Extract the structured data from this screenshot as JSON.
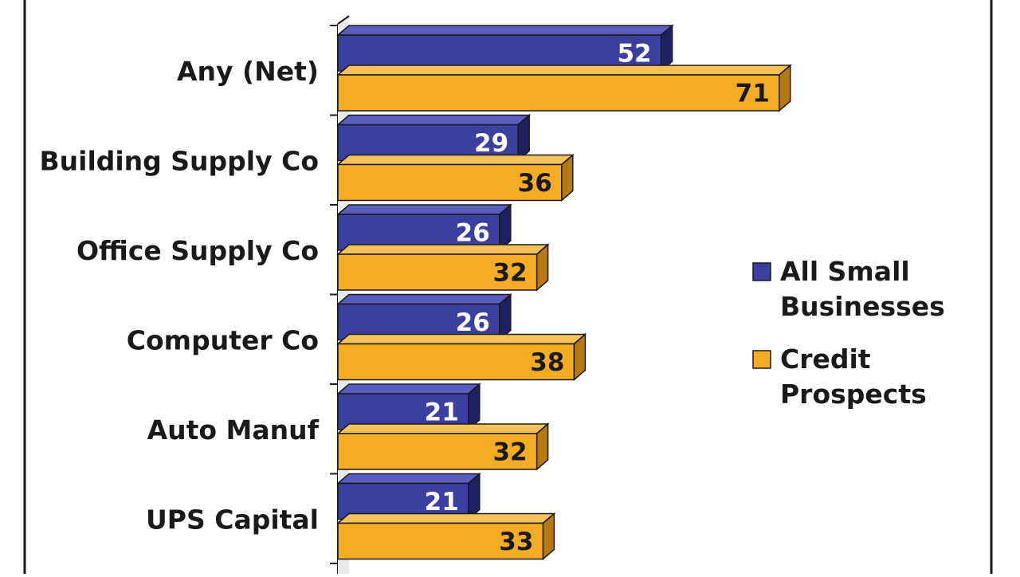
{
  "chart_data": {
    "type": "bar",
    "orientation": "horizontal",
    "style": "3d",
    "categories": [
      "Any (Net)",
      "Building Supply Co",
      "Office Supply Co",
      "Computer Co",
      "Auto Manuf",
      "UPS Capital"
    ],
    "series": [
      {
        "name": "All Small Businesses",
        "values": [
          52,
          29,
          26,
          26,
          21,
          21
        ]
      },
      {
        "name": "Credit Prospects",
        "values": [
          71,
          36,
          32,
          38,
          32,
          33
        ]
      }
    ],
    "legend": {
      "placement": "right",
      "entries": [
        {
          "lines": [
            "All Small",
            "Businesses"
          ]
        },
        {
          "lines": [
            "Credit",
            "Prospects"
          ]
        }
      ]
    },
    "colors": {
      "series_1": "#3d3f9e",
      "series_1_side": "#1f2163",
      "series_2": "#f5ac25",
      "series_2_side": "#b57812",
      "series_1_label": "#ffffff",
      "series_2_label": "#1a1a1a",
      "text": "#1a1a1a"
    },
    "grid": false,
    "title": "",
    "xlabel": "",
    "ylabel": ""
  }
}
